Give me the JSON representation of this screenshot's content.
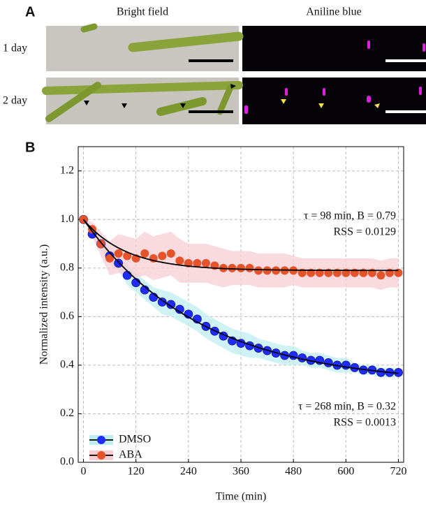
{
  "panel_a": {
    "label": "A",
    "columns": [
      "Bright field",
      "Aniline blue"
    ],
    "rows": [
      "1 day",
      "2 day"
    ]
  },
  "chart_data": {
    "type": "scatter",
    "panel_label": "B",
    "x_label": "Time (min)",
    "y_label": "Normalized intensity (a.u.)",
    "x": [
      0,
      20,
      40,
      60,
      80,
      100,
      120,
      140,
      160,
      180,
      200,
      220,
      240,
      260,
      280,
      300,
      320,
      340,
      360,
      380,
      400,
      420,
      440,
      460,
      480,
      500,
      520,
      540,
      560,
      580,
      600,
      620,
      640,
      660,
      680,
      700,
      720
    ],
    "series": [
      {
        "name": "DMSO",
        "color": "#1f2bff",
        "band_color": "#bfeef0",
        "values": [
          1.0,
          0.94,
          0.9,
          0.85,
          0.82,
          0.77,
          0.74,
          0.71,
          0.68,
          0.66,
          0.65,
          0.63,
          0.61,
          0.59,
          0.56,
          0.54,
          0.52,
          0.5,
          0.49,
          0.48,
          0.47,
          0.46,
          0.45,
          0.44,
          0.44,
          0.43,
          0.42,
          0.42,
          0.41,
          0.4,
          0.4,
          0.39,
          0.38,
          0.38,
          0.37,
          0.37,
          0.37
        ],
        "errors": [
          0,
          0.01,
          0.02,
          0.03,
          0.03,
          0.04,
          0.04,
          0.04,
          0.04,
          0.05,
          0.05,
          0.05,
          0.05,
          0.05,
          0.05,
          0.05,
          0.05,
          0.05,
          0.05,
          0.05,
          0.04,
          0.04,
          0.04,
          0.04,
          0.04,
          0.03,
          0.03,
          0.03,
          0.03,
          0.03,
          0.03,
          0.02,
          0.02,
          0.02,
          0.02,
          0.02,
          0.02
        ],
        "fit": {
          "tau": 268,
          "B": 0.32
        }
      },
      {
        "name": "ABA",
        "color": "#e5532a",
        "band_color": "#f7cdd3",
        "values": [
          1.0,
          0.96,
          0.9,
          0.84,
          0.86,
          0.85,
          0.84,
          0.86,
          0.84,
          0.85,
          0.86,
          0.83,
          0.82,
          0.82,
          0.82,
          0.81,
          0.8,
          0.8,
          0.8,
          0.8,
          0.79,
          0.79,
          0.79,
          0.79,
          0.79,
          0.78,
          0.78,
          0.78,
          0.78,
          0.78,
          0.78,
          0.78,
          0.78,
          0.78,
          0.77,
          0.78,
          0.78
        ],
        "errors": [
          0,
          0.03,
          0.05,
          0.07,
          0.08,
          0.08,
          0.08,
          0.09,
          0.09,
          0.09,
          0.09,
          0.09,
          0.08,
          0.08,
          0.08,
          0.08,
          0.08,
          0.07,
          0.07,
          0.07,
          0.07,
          0.07,
          0.07,
          0.07,
          0.06,
          0.06,
          0.06,
          0.06,
          0.06,
          0.06,
          0.06,
          0.06,
          0.06,
          0.06,
          0.06,
          0.06,
          0.06
        ],
        "fit": {
          "tau": 98,
          "B": 0.79
        }
      }
    ],
    "annotations": [
      "τ = 98 min, B = 0.79",
      "RSS = 0.0129",
      "τ = 268 min, B = 0.32",
      "RSS = 0.0013"
    ],
    "xlim": [
      -12,
      732
    ],
    "xticks": [
      0,
      120,
      240,
      360,
      480,
      600,
      720
    ],
    "ylim": [
      0,
      1.3
    ],
    "yticks": [
      {
        "value": 0,
        "label": "0.0"
      },
      {
        "value": 0.2,
        "label": "0.2"
      },
      {
        "value": 0.4,
        "label": "0.4"
      },
      {
        "value": 0.6,
        "label": "0.6"
      },
      {
        "value": 0.8,
        "label": "0.8"
      },
      {
        "value": 1,
        "label": "1.0"
      },
      {
        "value": 1.2,
        "label": "1.2"
      }
    ],
    "grid": true,
    "legend": "lower left"
  }
}
